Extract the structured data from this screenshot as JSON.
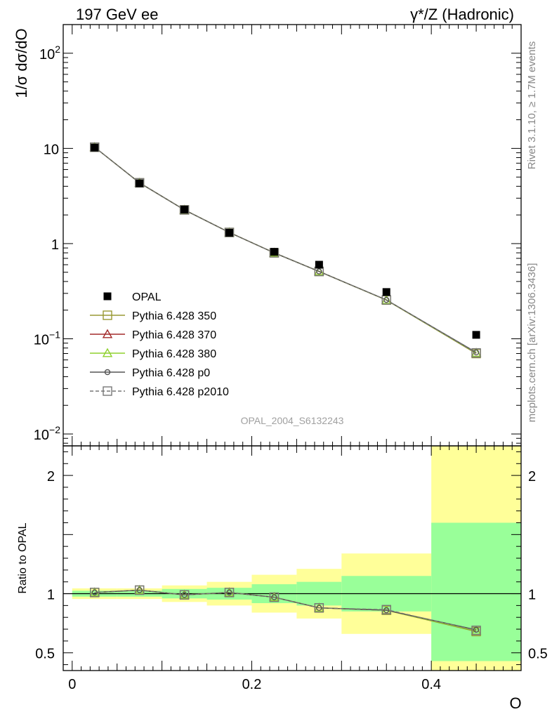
{
  "header": {
    "left_title": "197 GeV ee",
    "right_title": "γ*/Z (Hadronic)"
  },
  "side_text": {
    "rivet": "Rivet 3.1.10, ≥ 1.7M events",
    "mcplots": "mcplots.cern.ch [arXiv:1306.3436]"
  },
  "watermark": "OPAL_2004_S6132243",
  "chart_data": [
    {
      "type": "line",
      "ylabel": "1/σ dσ/dO",
      "yscale": "log",
      "xlim": [
        -0.01,
        0.5
      ],
      "ylim": [
        0.0075,
        200
      ],
      "ytick_labels": [
        {
          "value": 0.01,
          "base": "10",
          "exp": "−2"
        },
        {
          "value": 0.1,
          "base": "10",
          "exp": "−1"
        },
        {
          "value": 1,
          "text": "1"
        },
        {
          "value": 10,
          "text": "10"
        },
        {
          "value": 100,
          "base": "10",
          "exp": "2"
        }
      ],
      "x": [
        0.025,
        0.075,
        0.125,
        0.175,
        0.225,
        0.275,
        0.35,
        0.45
      ],
      "data": {
        "name": "OPAL",
        "values": [
          10.2,
          4.3,
          2.28,
          1.3,
          0.82,
          0.6,
          0.31,
          0.11
        ]
      },
      "series": [
        {
          "name": "Pythia 6.428 350",
          "color": "#999933",
          "marker": "square-open",
          "values": [
            10.3,
            4.35,
            2.26,
            1.31,
            0.8,
            0.51,
            0.255,
            0.07
          ]
        },
        {
          "name": "Pythia 6.428 370",
          "color": "#a32b2b",
          "marker": "triangle-open",
          "values": [
            10.3,
            4.35,
            2.26,
            1.31,
            0.8,
            0.51,
            0.255,
            0.071
          ]
        },
        {
          "name": "Pythia 6.428 380",
          "color": "#8fd12e",
          "marker": "triangle-open",
          "values": [
            10.3,
            4.35,
            2.26,
            1.31,
            0.8,
            0.51,
            0.255,
            0.071
          ]
        },
        {
          "name": "Pythia 6.428 p0",
          "color": "#555555",
          "marker": "circle-open",
          "values": [
            10.3,
            4.35,
            2.26,
            1.31,
            0.8,
            0.51,
            0.256,
            0.072
          ]
        },
        {
          "name": "Pythia 6.428 p2010",
          "color": "#777777",
          "marker": "square-open",
          "dashed": true,
          "values": [
            10.3,
            4.35,
            2.26,
            1.31,
            0.8,
            0.51,
            0.256,
            0.071
          ]
        }
      ]
    },
    {
      "type": "line",
      "ylabel": "Ratio to OPAL",
      "xlabel": "O",
      "ylim": [
        0.35,
        2.25
      ],
      "ytick_labels": [
        0.5,
        1,
        2
      ],
      "xtick_labels": [
        0,
        0.2,
        0.4
      ],
      "x": [
        0.025,
        0.075,
        0.125,
        0.175,
        0.225,
        0.275,
        0.35,
        0.45
      ],
      "bins": [
        {
          "lo": 0.0,
          "hi": 0.05,
          "stat": [
            0.975,
            1.025
          ],
          "total": [
            0.955,
            1.045
          ]
        },
        {
          "lo": 0.05,
          "hi": 0.1,
          "stat": [
            0.975,
            1.025
          ],
          "total": [
            0.955,
            1.045
          ]
        },
        {
          "lo": 0.1,
          "hi": 0.15,
          "stat": [
            0.96,
            1.04
          ],
          "total": [
            0.93,
            1.07
          ]
        },
        {
          "lo": 0.15,
          "hi": 0.2,
          "stat": [
            0.95,
            1.05
          ],
          "total": [
            0.9,
            1.1
          ]
        },
        {
          "lo": 0.2,
          "hi": 0.25,
          "stat": [
            0.92,
            1.08
          ],
          "total": [
            0.84,
            1.16
          ]
        },
        {
          "lo": 0.25,
          "hi": 0.3,
          "stat": [
            0.9,
            1.1
          ],
          "total": [
            0.79,
            1.21
          ]
        },
        {
          "lo": 0.3,
          "hi": 0.4,
          "stat": [
            0.85,
            1.15
          ],
          "total": [
            0.66,
            1.34
          ]
        },
        {
          "lo": 0.4,
          "hi": 0.5,
          "stat": [
            0.43,
            1.6
          ],
          "total": [
            0.2,
            2.4
          ]
        }
      ],
      "series_values": [
        [
          1.01,
          1.03,
          0.99,
          1.01,
          0.97,
          0.88,
          0.86,
          0.68
        ],
        [
          1.01,
          1.03,
          0.99,
          1.01,
          0.97,
          0.88,
          0.86,
          0.685
        ],
        [
          1.01,
          1.03,
          0.99,
          1.01,
          0.97,
          0.88,
          0.86,
          0.685
        ],
        [
          1.01,
          1.03,
          0.99,
          1.01,
          0.97,
          0.88,
          0.86,
          0.695
        ],
        [
          1.01,
          1.03,
          0.99,
          1.01,
          0.97,
          0.88,
          0.865,
          0.69
        ]
      ]
    }
  ]
}
